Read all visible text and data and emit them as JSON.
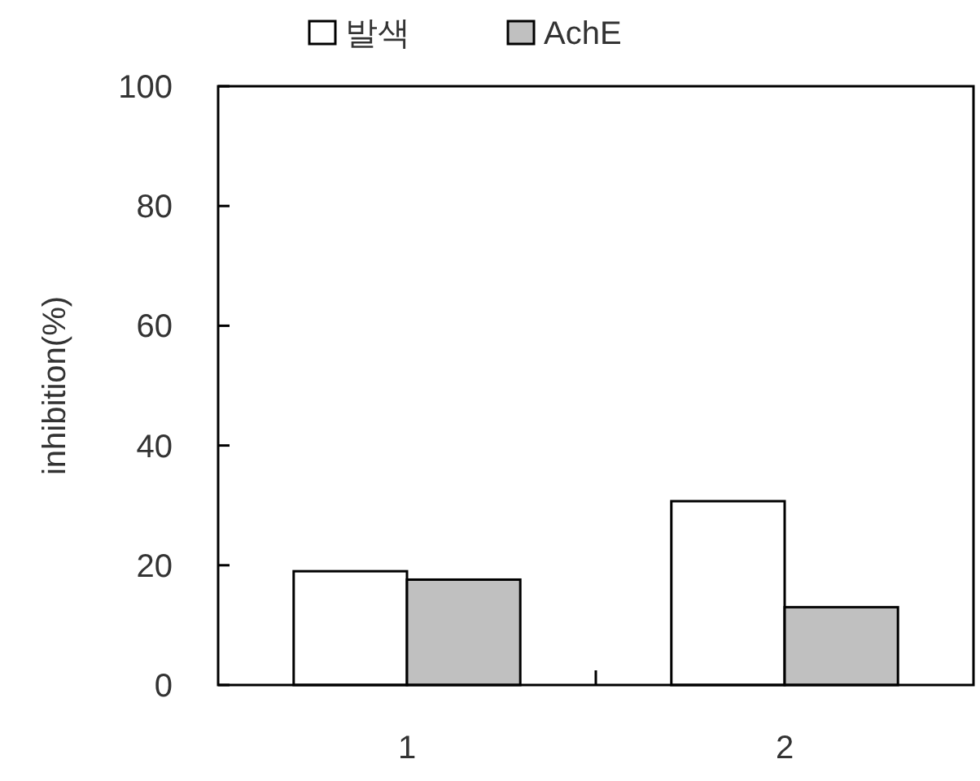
{
  "chart_data": {
    "type": "bar",
    "ylabel": "inhibition(%)",
    "categories": [
      "1",
      "2"
    ],
    "series": [
      {
        "name": "발색",
        "color": "#ffffff",
        "values": [
          19,
          30.7
        ]
      },
      {
        "name": "AchE",
        "color": "#c0c0c0",
        "values": [
          17.6,
          13
        ]
      }
    ],
    "ylim": [
      0,
      100
    ],
    "yticks": [
      0,
      20,
      40,
      60,
      80,
      100
    ],
    "legend": "top"
  }
}
